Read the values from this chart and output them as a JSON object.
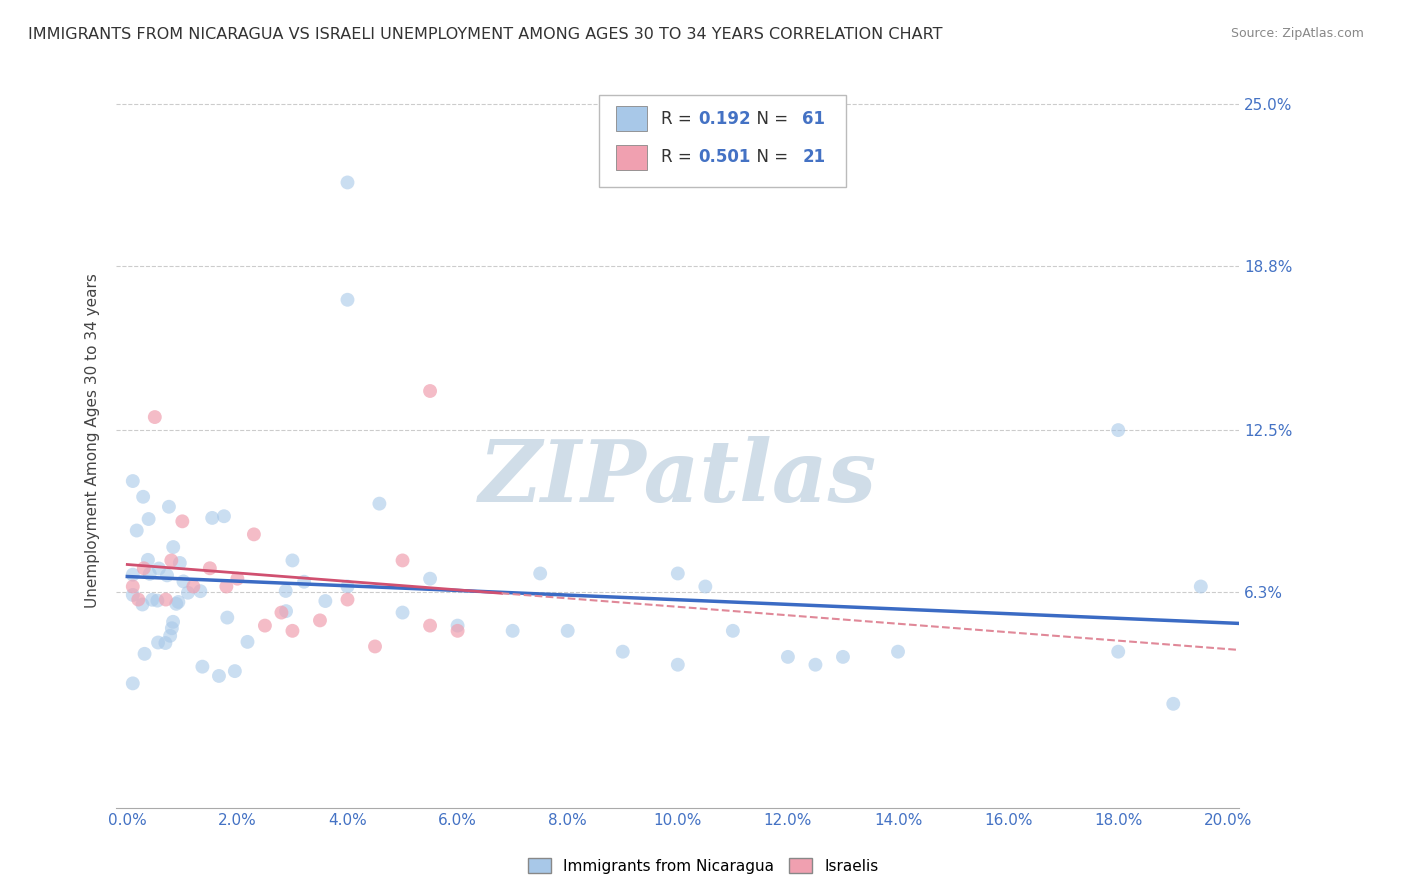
{
  "title": "IMMIGRANTS FROM NICARAGUA VS ISRAELI UNEMPLOYMENT AMONG AGES 30 TO 34 YEARS CORRELATION CHART",
  "source": "Source: ZipAtlas.com",
  "ylabel": "Unemployment Among Ages 30 to 34 years",
  "xlim": [
    -0.002,
    0.202
  ],
  "ylim": [
    -0.02,
    0.262
  ],
  "yticks": [
    0.063,
    0.125,
    0.188,
    0.25
  ],
  "ytick_labels": [
    "6.3%",
    "12.5%",
    "18.8%",
    "25.0%"
  ],
  "xticks": [
    0.0,
    0.02,
    0.04,
    0.06,
    0.08,
    0.1,
    0.12,
    0.14,
    0.16,
    0.18,
    0.2
  ],
  "xtick_labels": [
    "0.0%",
    "2.0%",
    "4.0%",
    "6.0%",
    "8.0%",
    "10.0%",
    "12.0%",
    "14.0%",
    "16.0%",
    "18.0%",
    "20.0%"
  ],
  "legend1_R": "0.192",
  "legend1_N": "61",
  "legend2_R": "0.501",
  "legend2_N": "21",
  "blue_color": "#A8C8E8",
  "blue_line_color": "#3B6BC4",
  "pink_color": "#F0A0B0",
  "pink_line_color": "#D05070",
  "pink_dash_color": "#E08898",
  "watermark": "ZIPatlas",
  "watermark_color": "#D0DDE8",
  "grid_color": "#CCCCCC",
  "background_color": "#FFFFFF",
  "title_fontsize": 11.5,
  "axis_label_fontsize": 11,
  "tick_fontsize": 11,
  "legend_fontsize": 12,
  "scatter_size": 100
}
